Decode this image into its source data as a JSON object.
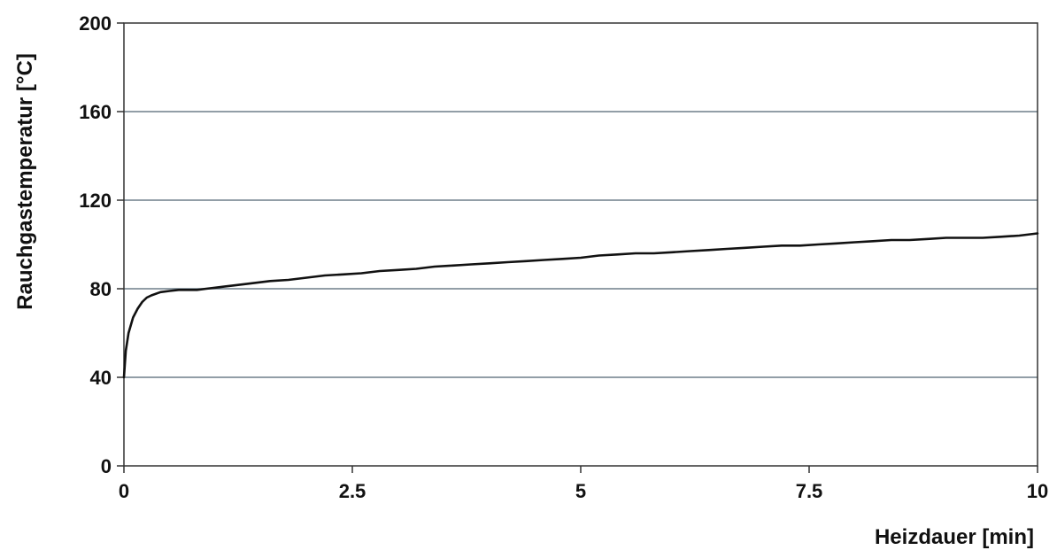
{
  "chart_data": {
    "type": "line",
    "title": "",
    "xlabel": "Heizdauer [min]",
    "ylabel": "Rauchgastemperatur [°C]",
    "xlim": [
      0,
      10
    ],
    "ylim": [
      0,
      200
    ],
    "x_ticks": [
      0,
      2.5,
      5,
      7.5,
      10
    ],
    "x_tick_labels": [
      "0",
      "2.5",
      "5",
      "7.5",
      "10"
    ],
    "y_ticks": [
      0,
      40,
      80,
      120,
      160,
      200
    ],
    "y_tick_labels": [
      "0",
      "40",
      "80",
      "120",
      "160",
      "200"
    ],
    "grid": "horizontal",
    "legend": "none",
    "colors": {
      "line": "#111111",
      "grid": "#6f7f8a",
      "frame": "#333333"
    },
    "series": [
      {
        "x": [
          0,
          0.02,
          0.05,
          0.1,
          0.15,
          0.2,
          0.25,
          0.3,
          0.4,
          0.5,
          0.6,
          0.7,
          0.8,
          0.9,
          1.0,
          1.2,
          1.4,
          1.6,
          1.8,
          2.0,
          2.2,
          2.4,
          2.6,
          2.8,
          3.0,
          3.2,
          3.4,
          3.6,
          3.8,
          4.0,
          4.2,
          4.4,
          4.6,
          4.8,
          5.0,
          5.2,
          5.4,
          5.6,
          5.8,
          6.0,
          6.2,
          6.4,
          6.6,
          6.8,
          7.0,
          7.2,
          7.4,
          7.6,
          7.8,
          8.0,
          8.2,
          8.4,
          8.6,
          8.8,
          9.0,
          9.2,
          9.4,
          9.6,
          9.8,
          10.0
        ],
        "y": [
          40,
          52,
          60,
          67,
          71,
          74,
          76,
          77,
          78.5,
          79,
          79.5,
          79.5,
          79.5,
          80,
          80.5,
          81.5,
          82.5,
          83.5,
          84,
          85,
          86,
          86.5,
          87,
          88,
          88.5,
          89,
          90,
          90.5,
          91,
          91.5,
          92,
          92.5,
          93,
          93.5,
          94,
          95,
          95.5,
          96,
          96,
          96.5,
          97,
          97.5,
          98,
          98.5,
          99,
          99.5,
          99.5,
          100,
          100.5,
          101,
          101.5,
          102,
          102,
          102.5,
          103,
          103,
          103,
          103.5,
          104,
          105
        ]
      }
    ]
  }
}
